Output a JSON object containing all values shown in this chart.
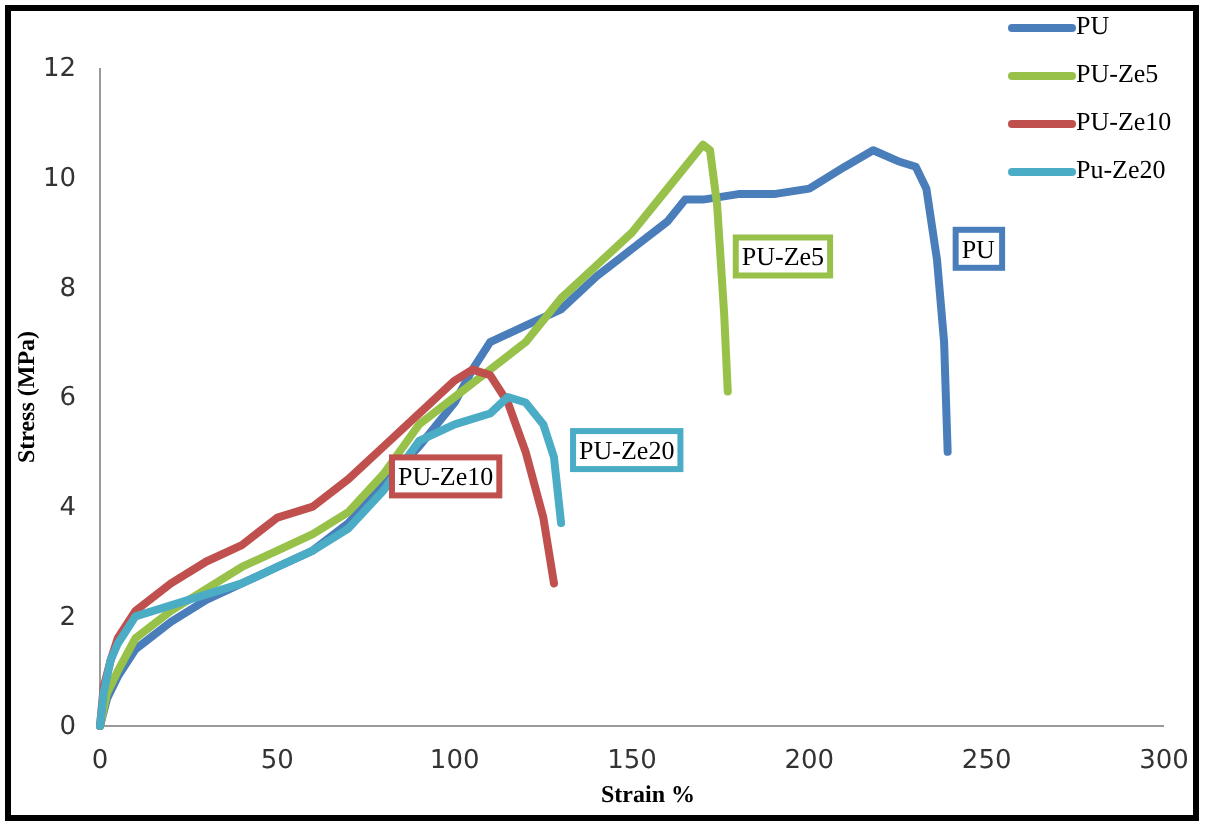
{
  "chart_data": {
    "type": "line",
    "xlabel": "Strain %",
    "ylabel": "Stress (MPa)",
    "xlim": [
      0,
      300
    ],
    "ylim": [
      0,
      12
    ],
    "xticks": [
      0,
      50,
      100,
      150,
      200,
      250,
      300
    ],
    "yticks": [
      0,
      2,
      4,
      6,
      8,
      10,
      12
    ],
    "grid": false,
    "legend": "top right",
    "marker": "none",
    "line_style": "solid",
    "series": [
      {
        "name": "PU",
        "color": "#4a7ebb",
        "x": [
          0,
          2,
          5,
          10,
          20,
          30,
          40,
          50,
          60,
          70,
          80,
          90,
          100,
          105,
          110,
          120,
          130,
          140,
          150,
          160,
          165,
          170,
          180,
          190,
          200,
          210,
          218,
          225,
          230,
          233,
          236,
          238,
          239
        ],
        "values": [
          0,
          0.5,
          0.9,
          1.4,
          1.9,
          2.3,
          2.6,
          2.9,
          3.2,
          3.7,
          4.4,
          5.1,
          5.9,
          6.5,
          7.0,
          7.3,
          7.6,
          8.2,
          8.7,
          9.2,
          9.6,
          9.6,
          9.7,
          9.7,
          9.8,
          10.2,
          10.5,
          10.3,
          10.2,
          9.8,
          8.5,
          7.0,
          5.0
        ]
      },
      {
        "name": "PU-Ze5",
        "color": "#98c14a",
        "x": [
          0,
          2,
          5,
          10,
          20,
          30,
          40,
          50,
          60,
          70,
          80,
          90,
          100,
          110,
          120,
          130,
          140,
          150,
          160,
          170,
          172,
          174,
          176,
          177
        ],
        "values": [
          0,
          0.6,
          1.0,
          1.6,
          2.1,
          2.5,
          2.9,
          3.2,
          3.5,
          3.9,
          4.6,
          5.5,
          6.0,
          6.5,
          7.0,
          7.8,
          8.4,
          9.0,
          9.8,
          10.6,
          10.5,
          9.5,
          7.5,
          6.1
        ]
      },
      {
        "name": "PU-Ze10",
        "color": "#c0504d",
        "x": [
          0,
          1,
          3,
          5,
          10,
          20,
          30,
          40,
          50,
          60,
          70,
          80,
          90,
          100,
          105,
          110,
          115,
          120,
          125,
          128
        ],
        "values": [
          0,
          0.7,
          1.2,
          1.6,
          2.1,
          2.6,
          3.0,
          3.3,
          3.8,
          4.0,
          4.5,
          5.1,
          5.7,
          6.3,
          6.5,
          6.4,
          5.9,
          5.0,
          3.8,
          2.6
        ]
      },
      {
        "name": "Pu-Ze20",
        "color": "#4bacc6",
        "x": [
          0,
          1,
          3,
          5,
          10,
          20,
          30,
          40,
          50,
          60,
          70,
          80,
          90,
          100,
          110,
          115,
          120,
          125,
          128,
          130
        ],
        "values": [
          0,
          0.6,
          1.2,
          1.5,
          2.0,
          2.2,
          2.4,
          2.6,
          2.9,
          3.2,
          3.6,
          4.3,
          5.2,
          5.5,
          5.7,
          6.0,
          5.9,
          5.5,
          4.9,
          3.7
        ]
      }
    ],
    "annotations": [
      "PU",
      "PU-Ze5",
      "PU-Ze10",
      "PU-Ze20"
    ]
  }
}
